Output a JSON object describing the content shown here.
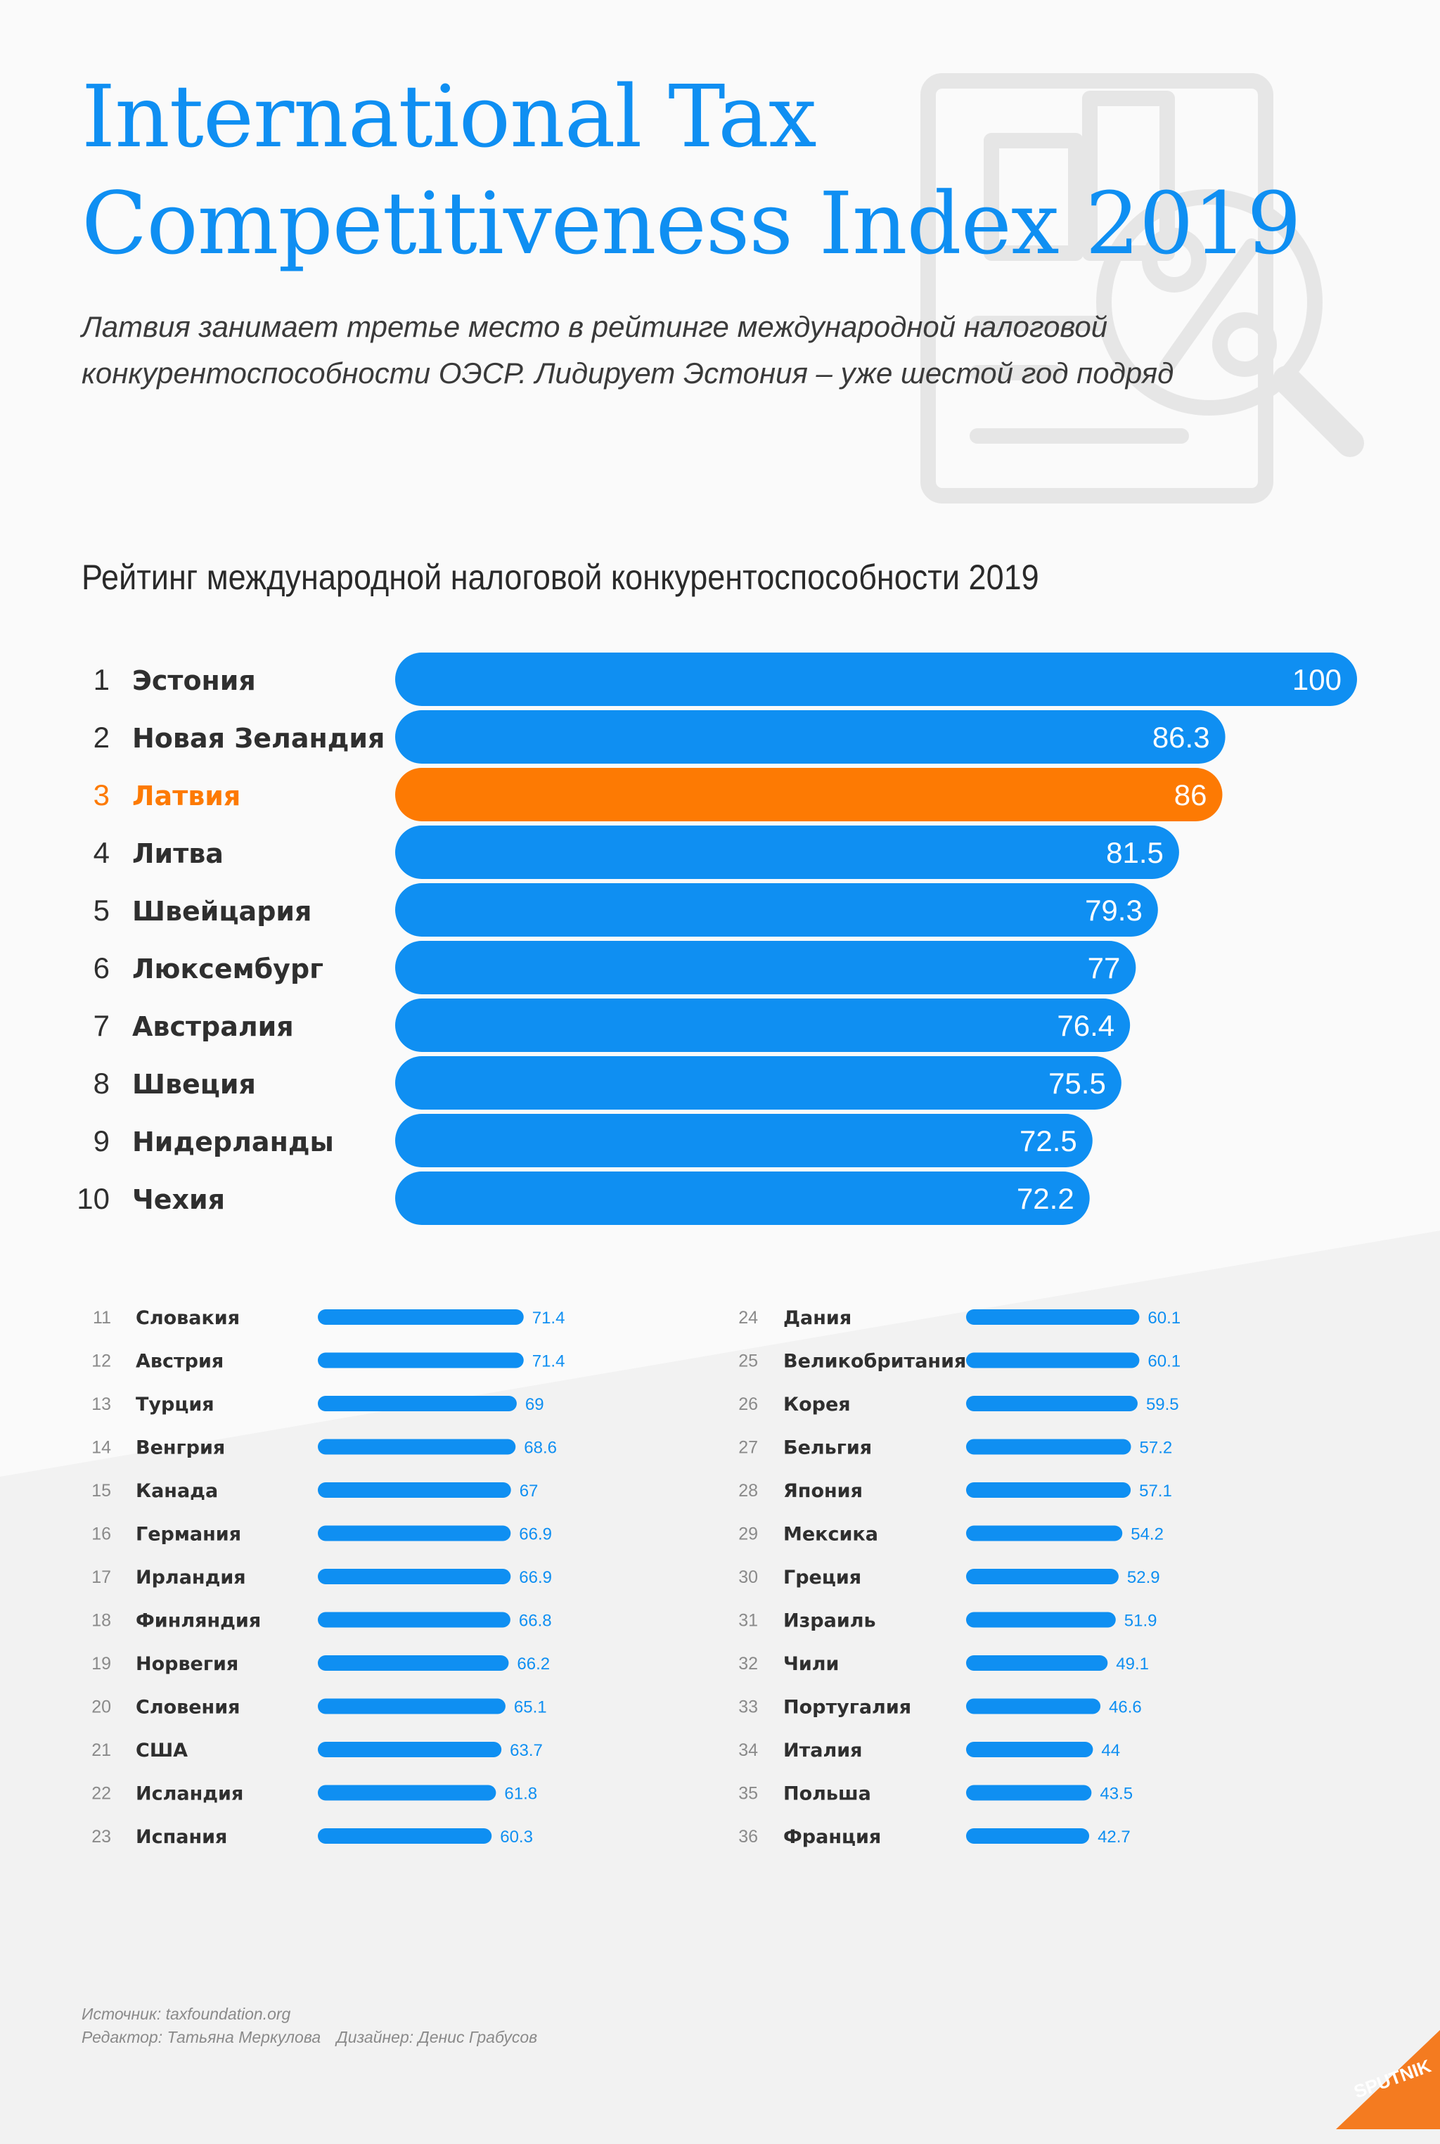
{
  "header": {
    "title_line1": "International Tax",
    "title_line2": "Competitiveness Index 2019",
    "subtitle_line1": "Латвия занимает третье место в рейтинге международной налоговой",
    "subtitle_line2": "конкурентоспособности ОЭСР. Лидирует Эстония – уже шестой год подряд"
  },
  "colors": {
    "accent_blue": "#0f8ff2",
    "highlight_orange": "#fd7a03",
    "text_dark": "#2f2f2f",
    "text_muted": "#8a8a8a",
    "logo_bg": "#f47b20"
  },
  "chart_data": [
    {
      "type": "bar",
      "orientation": "horizontal",
      "title": "Рейтинг международной налоговой конкурентоспособности 2019",
      "highlight_rank": 3,
      "ranks": [
        "1",
        "2",
        "3",
        "4",
        "5",
        "6",
        "7",
        "8",
        "9",
        "10"
      ],
      "categories": [
        "Эстония",
        "Новая Зеландия",
        "Латвия",
        "Литва",
        "Швейцария",
        "Люксембург",
        "Австралия",
        "Швеция",
        "Нидерланды",
        "Чехия"
      ],
      "values": [
        100,
        86.3,
        86,
        81.5,
        79.3,
        77,
        76.4,
        75.5,
        72.5,
        72.2
      ],
      "value_labels": [
        "100",
        "86.3",
        "86",
        "81.5",
        "79.3",
        "77",
        "76.4",
        "75.5",
        "72.5",
        "72.2"
      ]
    },
    {
      "type": "bar",
      "orientation": "horizontal",
      "layout": "two-columns",
      "ranks": [
        "11",
        "12",
        "13",
        "14",
        "15",
        "16",
        "17",
        "18",
        "19",
        "20",
        "21",
        "22",
        "23",
        "24",
        "25",
        "26",
        "27",
        "28",
        "29",
        "30",
        "31",
        "32",
        "33",
        "34",
        "35",
        "36"
      ],
      "categories": [
        "Словакия",
        "Австрия",
        "Турция",
        "Венгрия",
        "Канада",
        "Германия",
        "Ирландия",
        "Финляндия",
        "Норвегия",
        "Словения",
        "США",
        "Исландия",
        "Испания",
        "Дания",
        "Великобритания",
        "Корея",
        "Бельгия",
        "Япония",
        "Мексика",
        "Греция",
        "Израиль",
        "Чили",
        "Португалия",
        "Италия",
        "Польша",
        "Франция"
      ],
      "values": [
        71.4,
        71.4,
        69,
        68.6,
        67,
        66.9,
        66.9,
        66.8,
        66.2,
        65.1,
        63.7,
        61.8,
        60.3,
        60.1,
        60.1,
        59.5,
        57.2,
        57.1,
        54.2,
        52.9,
        51.9,
        49.1,
        46.6,
        44,
        43.5,
        42.7
      ],
      "value_labels": [
        "71.4",
        "71.4",
        "69",
        "68.6",
        "67",
        "66.9",
        "66.9",
        "66.8",
        "66.2",
        "65.1",
        "63.7",
        "61.8",
        "60.3",
        "60.1",
        "60.1",
        "59.5",
        "57.2",
        "57.1",
        "54.2",
        "52.9",
        "51.9",
        "49.1",
        "46.6",
        "44",
        "43.5",
        "42.7"
      ]
    }
  ],
  "footer": {
    "source": "Источник: taxfoundation.org",
    "editor": "Редактор: Татьяна Меркулова",
    "designer": "Дизайнер: Денис Грабусов",
    "logo_text": "SPUTNIK"
  }
}
